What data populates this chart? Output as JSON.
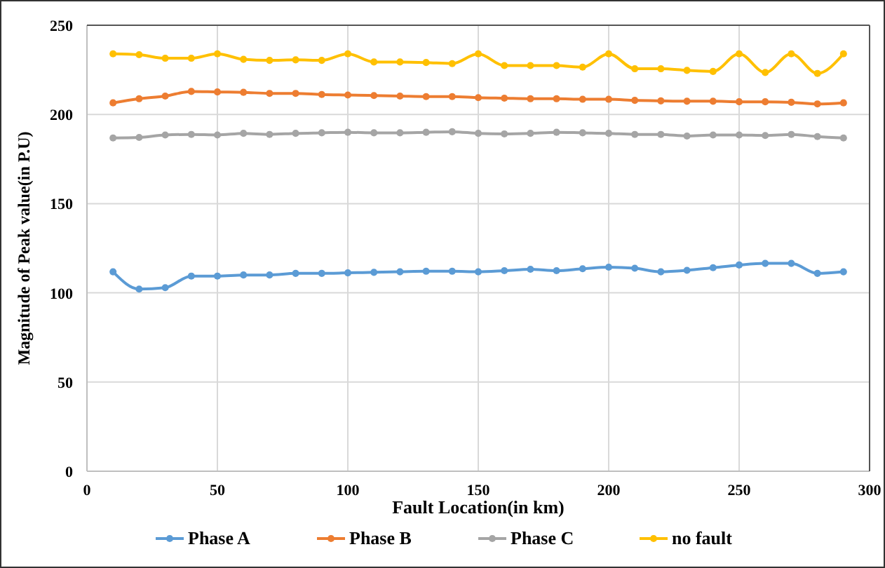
{
  "chart_data": {
    "type": "line",
    "xlabel": "Fault Location(in km)",
    "ylabel": "Magnitude of Peak value(in P.U)",
    "x": [
      10,
      20,
      30,
      40,
      50,
      60,
      70,
      80,
      90,
      100,
      110,
      120,
      130,
      140,
      150,
      160,
      170,
      180,
      190,
      200,
      210,
      220,
      230,
      240,
      250,
      260,
      270,
      280,
      290
    ],
    "series": [
      {
        "name": "Phase A",
        "color": "#5b9bd5",
        "values": [
          111.8,
          102.1,
          102.9,
          109.4,
          109.4,
          110,
          110,
          110.9,
          110.9,
          111.2,
          111.5,
          111.8,
          112.1,
          112.1,
          111.8,
          112.4,
          113.2,
          112.4,
          113.5,
          114.4,
          113.8,
          111.8,
          112.6,
          114.1,
          115.6,
          116.5,
          116.5,
          110.9,
          111.8
        ]
      },
      {
        "name": "Phase B",
        "color": "#ed7d31",
        "values": [
          206.5,
          208.8,
          210.3,
          212.9,
          212.6,
          212.4,
          211.8,
          211.8,
          211.2,
          210.9,
          210.6,
          210.3,
          210,
          210,
          209.4,
          209.1,
          208.8,
          208.8,
          208.5,
          208.5,
          207.9,
          207.6,
          207.4,
          207.4,
          207.1,
          207.1,
          206.8,
          205.9,
          206.5
        ]
      },
      {
        "name": "Phase C",
        "color": "#a5a5a5",
        "values": [
          186.8,
          187.1,
          188.5,
          188.8,
          188.5,
          189.4,
          188.8,
          189.4,
          189.7,
          190,
          189.7,
          189.7,
          190,
          190.3,
          189.4,
          189.1,
          189.4,
          190,
          189.7,
          189.4,
          188.8,
          188.8,
          187.9,
          188.5,
          188.5,
          188.2,
          188.8,
          187.6,
          186.8
        ]
      },
      {
        "name": "no fault",
        "color": "#ffc000",
        "values": [
          234,
          233.5,
          231.5,
          231.5,
          234,
          230.9,
          230.3,
          230.6,
          230.3,
          234,
          229.4,
          229.4,
          229.1,
          228.5,
          234,
          227.4,
          227.4,
          227.4,
          226.5,
          234,
          225.6,
          225.6,
          224.7,
          224.1,
          234,
          223.5,
          234,
          223,
          234
        ]
      }
    ],
    "xlim": [
      0,
      300
    ],
    "xticks": [
      0,
      50,
      100,
      150,
      200,
      250,
      300
    ],
    "ylim": [
      0,
      250
    ],
    "yticks": [
      0,
      50,
      100,
      150,
      200,
      250
    ],
    "grid": true,
    "legend": "bottom",
    "marker": "circle",
    "line_style": "solid"
  }
}
